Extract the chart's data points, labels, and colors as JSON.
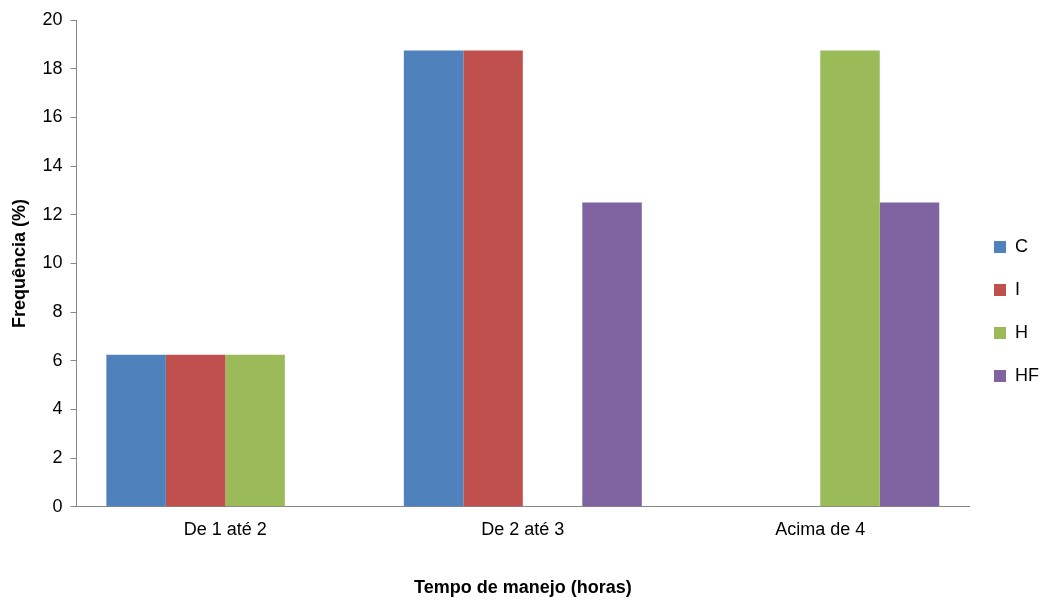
{
  "chart_data": {
    "type": "bar",
    "xlabel": "Tempo de manejo (horas)",
    "ylabel": "Frequência (%)",
    "categories": [
      "De 1 até 2",
      "De 2 até 3",
      "Acima de 4"
    ],
    "series": [
      {
        "name": "C",
        "color": "#4f81bd",
        "values": [
          6.25,
          18.75,
          0
        ]
      },
      {
        "name": "I",
        "color": "#c0504d",
        "values": [
          6.25,
          18.75,
          0
        ]
      },
      {
        "name": "H",
        "color": "#9bbb59",
        "values": [
          6.25,
          0,
          18.75
        ]
      },
      {
        "name": "HF",
        "color": "#8064a2",
        "values": [
          0,
          12.5,
          12.5
        ]
      }
    ],
    "ylim": [
      0,
      20
    ],
    "yticks": [
      0,
      2,
      4,
      6,
      8,
      10,
      12,
      14,
      16,
      18,
      20
    ],
    "grid": false,
    "legend": "right"
  }
}
